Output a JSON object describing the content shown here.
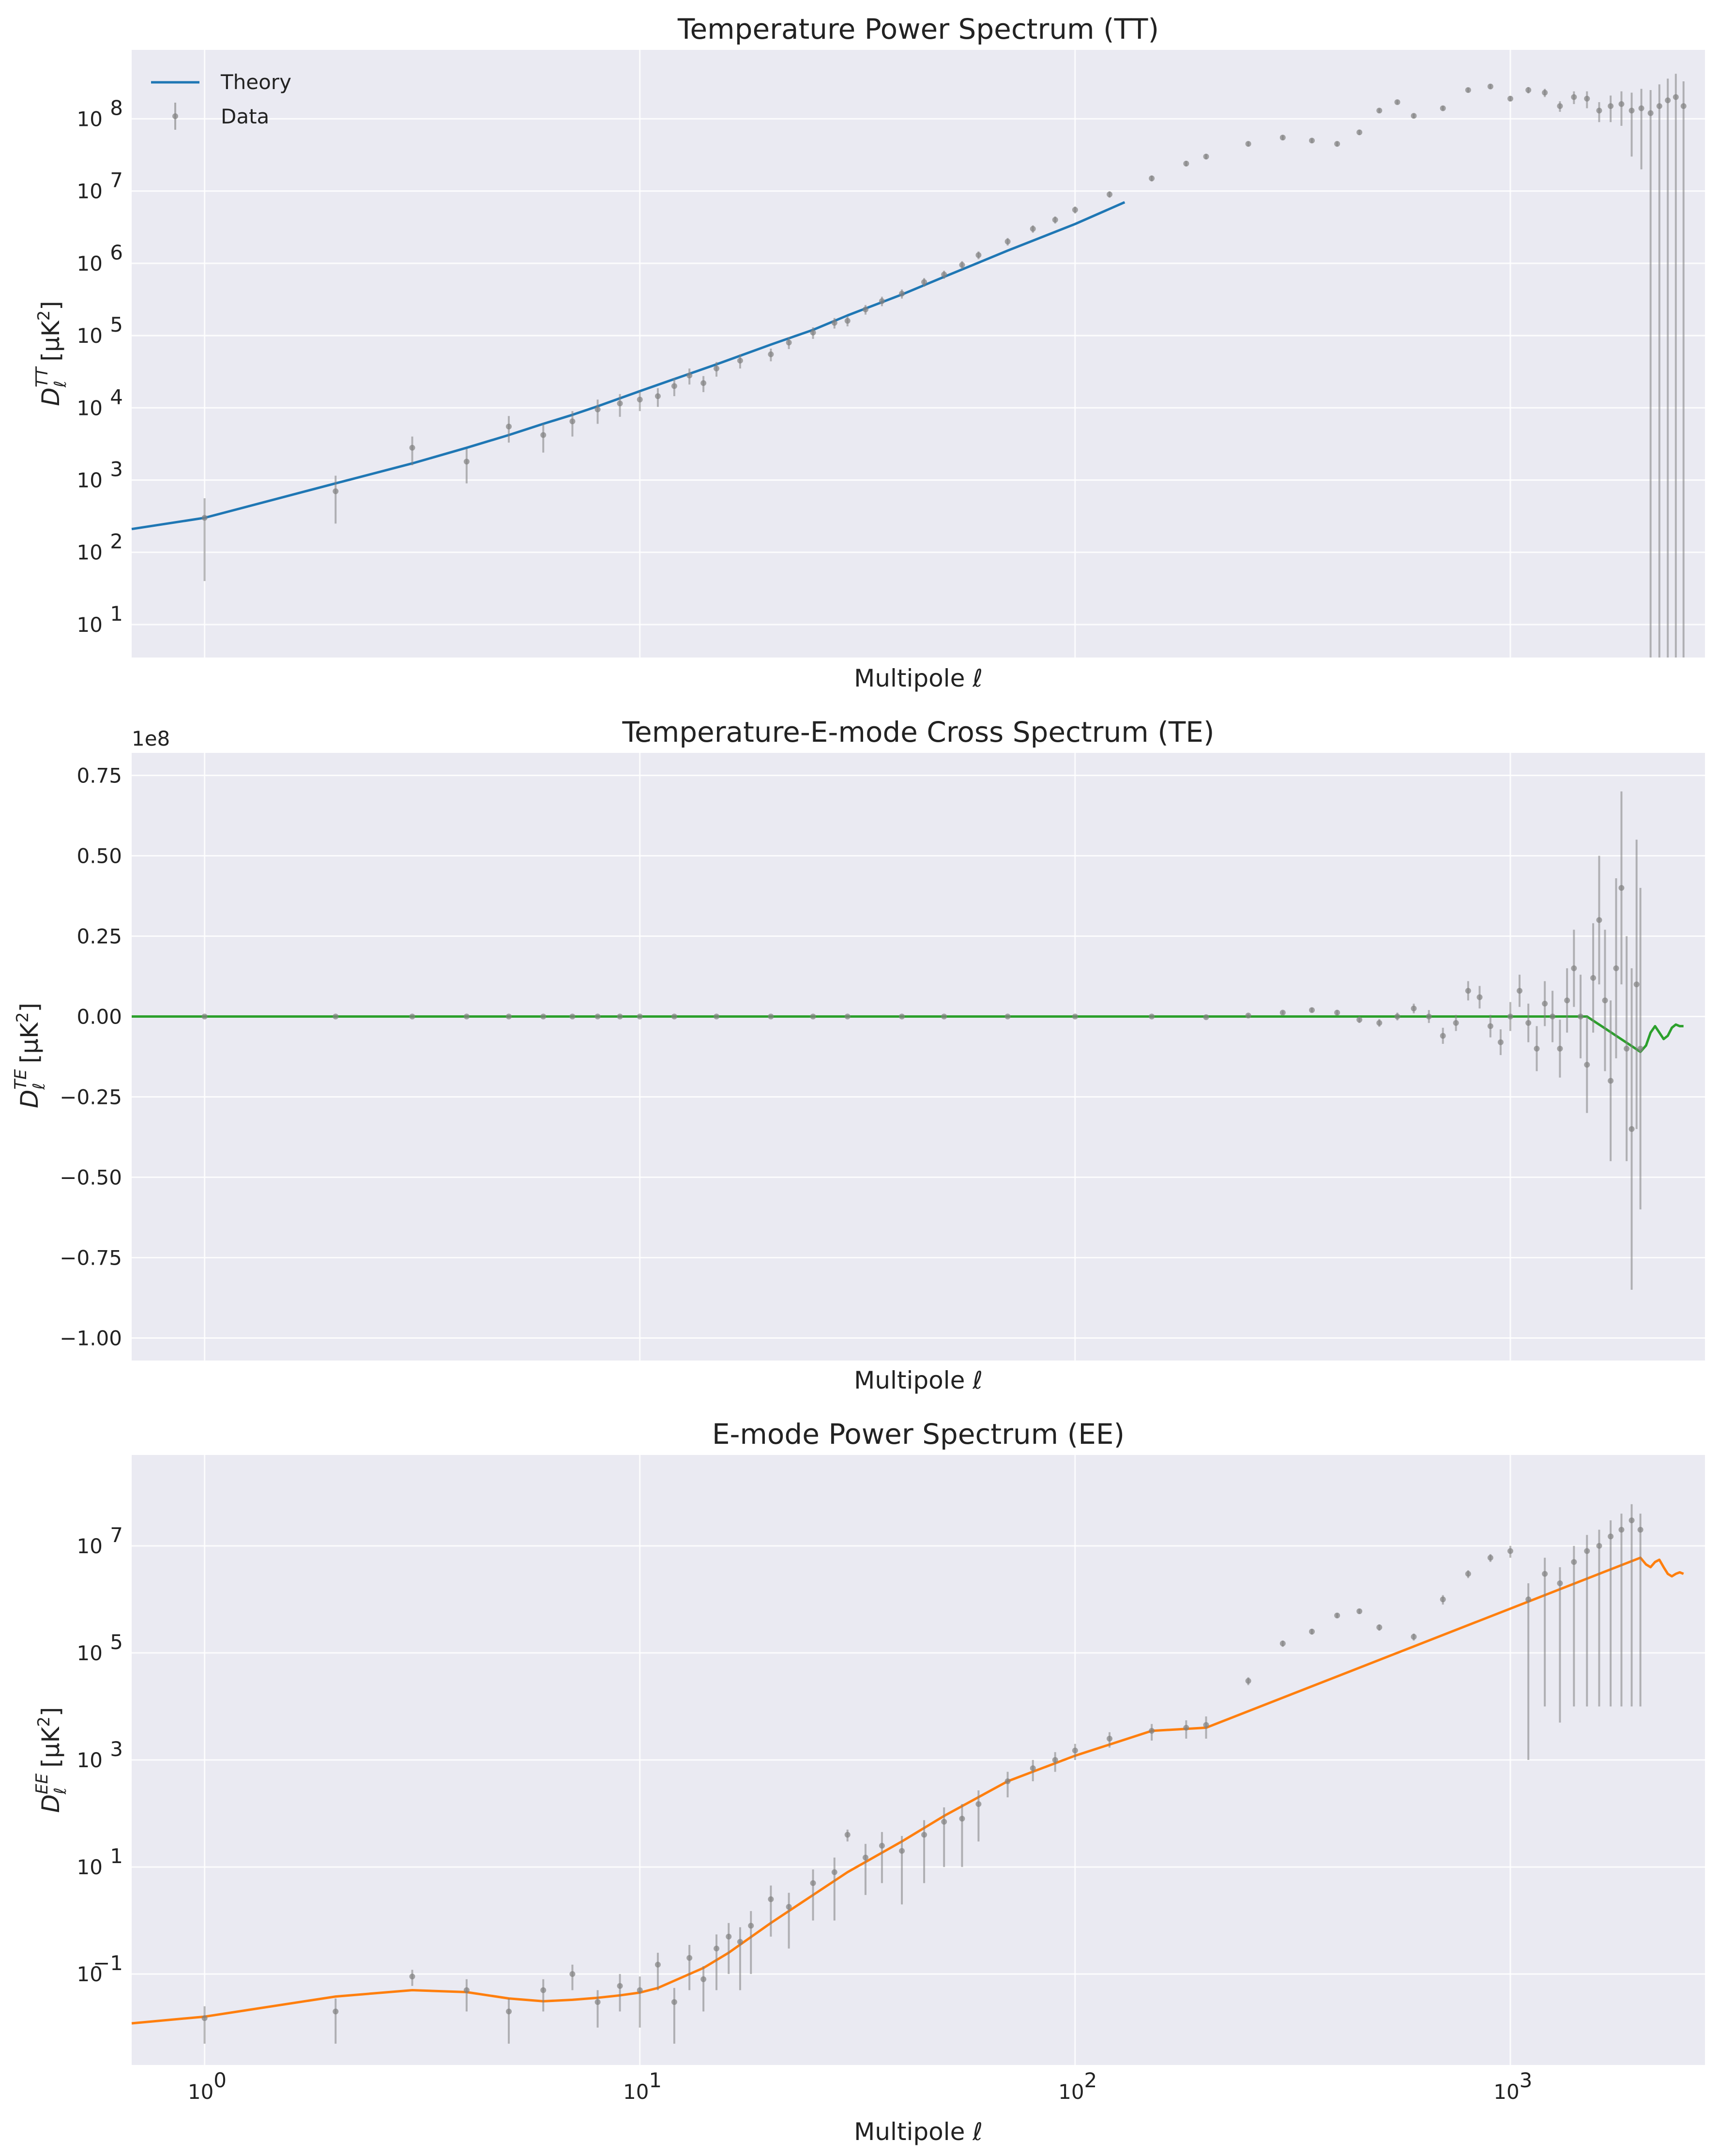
{
  "colors": {
    "background": "#eaeaf2",
    "grid": "#ffffff",
    "theory_tt": "#1f77b4",
    "theory_te": "#2ca02c",
    "theory_ee": "#ff7f0e",
    "data": "#808080"
  },
  "legend": {
    "theory": "Theory",
    "data": "Data",
    "placement": "upper-left"
  },
  "chart_data": [
    {
      "type": "line",
      "title": "Temperature Power Spectrum (TT)",
      "xlabel": "Multipole ℓ",
      "ylabel": "D_ℓ^TT [μK²]",
      "ylabel_main": "D",
      "ylabel_sub": "ℓ",
      "ylabel_sup": "TT",
      "ylabel_unit": "[μK",
      "ylabel_unit_sup": "2",
      "ylabel_unit_close": "]",
      "xscale": "log",
      "yscale": "log",
      "xlim": [
        0.68,
        2800
      ],
      "ylim": [
        3.5,
        900000000
      ],
      "grid": true,
      "yticks": [
        {
          "base": "10",
          "exp": "1"
        },
        {
          "base": "10",
          "exp": "2"
        },
        {
          "base": "10",
          "exp": "3"
        },
        {
          "base": "10",
          "exp": "4"
        },
        {
          "base": "10",
          "exp": "5"
        },
        {
          "base": "10",
          "exp": "6"
        },
        {
          "base": "10",
          "exp": "7"
        },
        {
          "base": "10",
          "exp": "8"
        }
      ],
      "series": [
        {
          "name": "Theory",
          "kind": "line",
          "x": [
            0.68,
            1,
            2,
            3,
            4,
            5,
            6,
            7,
            8,
            10,
            12,
            15,
            20,
            25,
            30,
            40,
            50,
            70,
            100,
            130
          ],
          "y": [
            210,
            300,
            900,
            1700,
            2800,
            4200,
            6000,
            8000,
            10500,
            17000,
            25000,
            40000,
            75000,
            120000,
            190000,
            370000,
            650000,
            1500000,
            3500000,
            7000000
          ]
        },
        {
          "name": "Data",
          "kind": "errorbar",
          "x": [
            1,
            2,
            3,
            4,
            5,
            6,
            7,
            8,
            9,
            10,
            11,
            12,
            13,
            14,
            15,
            17,
            20,
            22,
            25,
            28,
            30,
            33,
            36,
            40,
            45,
            50,
            55,
            60,
            70,
            80,
            90,
            100,
            120,
            150,
            180,
            200,
            250,
            300,
            350,
            400,
            450,
            500,
            550,
            600,
            700,
            800,
            900,
            1000,
            1100,
            1200,
            1300,
            1400,
            1500,
            1600,
            1700,
            1800,
            1900,
            2000,
            2100,
            2200,
            2300,
            2400,
            2500
          ],
          "y": [
            300,
            700,
            2800,
            1800,
            5500,
            4200,
            6500,
            9500,
            11500,
            13000,
            14500,
            20000,
            28000,
            22000,
            35000,
            45000,
            55000,
            80000,
            110000,
            150000,
            160000,
            230000,
            300000,
            380000,
            550000,
            700000,
            950000,
            1300000,
            2000000,
            3000000,
            4000000,
            5500000,
            9000000,
            15000000,
            24000000,
            30000000,
            45000000,
            55000000,
            50000000,
            45000000,
            65000000,
            130000000,
            170000000,
            110000000,
            140000000,
            250000000,
            280000000,
            190000000,
            250000000,
            230000000,
            150000000,
            200000000,
            190000000,
            130000000,
            150000000,
            160000000,
            130000000,
            140000000,
            120000000,
            150000000,
            180000000,
            200000000,
            150000000
          ],
          "err": [
            260,
            450,
            1200,
            900,
            2200,
            1800,
            2500,
            3500,
            4000,
            4000,
            4200,
            5500,
            7000,
            5500,
            8000,
            10000,
            11000,
            15000,
            20000,
            25000,
            26000,
            35000,
            45000,
            55000,
            75000,
            90000,
            120000,
            160000,
            240000,
            350000,
            450000,
            600000,
            900000,
            1400000,
            2000000,
            2500000,
            3500000,
            4000000,
            3500000,
            3500000,
            5000000,
            9000000,
            11000000,
            8000000,
            10000000,
            18000000,
            20000000,
            15000000,
            25000000,
            30000000,
            25000000,
            40000000,
            50000000,
            40000000,
            60000000,
            80000000,
            100000000,
            120000000,
            130000000,
            150000000,
            180000000,
            220000000,
            180000000
          ]
        }
      ]
    },
    {
      "type": "line",
      "title": "Temperature-E-mode Cross Spectrum (TE)",
      "xlabel": "Multipole ℓ",
      "ylabel": "D_ℓ^TE [μK²]",
      "ylabel_main": "D",
      "ylabel_sub": "ℓ",
      "ylabel_sup": "TE",
      "ylabel_unit": "[μK",
      "ylabel_unit_sup": "2",
      "ylabel_unit_close": "]",
      "xscale": "log",
      "yscale": "linear",
      "xlim": [
        0.68,
        2800
      ],
      "ylim": [
        -1.07,
        0.82
      ],
      "offset_text": "1e8",
      "grid": true,
      "yticks": [
        {
          "value": 0.75,
          "label": "0.75"
        },
        {
          "value": 0.5,
          "label": "0.50"
        },
        {
          "value": 0.25,
          "label": "0.25"
        },
        {
          "value": 0.0,
          "label": "0.00"
        },
        {
          "value": -0.25,
          "label": "−0.25"
        },
        {
          "value": -0.5,
          "label": "−0.50"
        },
        {
          "value": -0.75,
          "label": "−0.75"
        },
        {
          "value": -1.0,
          "label": "−1.00"
        }
      ],
      "series": [
        {
          "name": "Theory",
          "kind": "line",
          "x": [
            0.68,
            1,
            10,
            100,
            1000,
            1500,
            1990,
            2050,
            2100,
            2150,
            2200,
            2250,
            2300,
            2350,
            2400,
            2450,
            2500
          ],
          "y": [
            0,
            0,
            0,
            0,
            0,
            0,
            -0.11,
            -0.09,
            -0.05,
            -0.03,
            -0.05,
            -0.07,
            -0.06,
            -0.035,
            -0.025,
            -0.03,
            -0.03
          ]
        },
        {
          "name": "Data",
          "kind": "errorbar",
          "x": [
            1,
            2,
            3,
            4,
            5,
            6,
            7,
            8,
            9,
            10,
            12,
            15,
            20,
            25,
            30,
            40,
            50,
            70,
            100,
            150,
            200,
            250,
            300,
            350,
            400,
            450,
            500,
            550,
            600,
            650,
            700,
            750,
            800,
            850,
            900,
            950,
            1000,
            1050,
            1100,
            1150,
            1200,
            1250,
            1300,
            1350,
            1400,
            1450,
            1500,
            1550,
            1600,
            1650,
            1700,
            1750,
            1800,
            1850,
            1900,
            1950,
            1990
          ],
          "y": [
            0,
            0,
            0,
            0,
            0,
            0,
            0,
            0,
            0,
            0,
            0,
            0,
            0,
            0,
            0,
            0,
            0,
            0,
            0,
            0,
            -0.002,
            0.003,
            0.012,
            0.02,
            0.012,
            -0.01,
            -0.02,
            0.0,
            0.025,
            0.0,
            -0.06,
            -0.02,
            0.08,
            0.06,
            -0.03,
            -0.08,
            0.0,
            0.08,
            -0.02,
            -0.1,
            0.04,
            0.0,
            -0.1,
            0.05,
            0.15,
            0.0,
            -0.15,
            0.12,
            0.3,
            0.05,
            -0.2,
            0.15,
            0.4,
            -0.1,
            -0.35,
            0.1,
            -0.1
          ],
          "err": [
            0.0005,
            0.0005,
            0.0005,
            0.0005,
            0.0005,
            0.0005,
            0.0005,
            0.0005,
            0.0005,
            0.0005,
            0.0005,
            0.0005,
            0.0005,
            0.0005,
            0.0005,
            0.0005,
            0.0005,
            0.001,
            0.001,
            0.002,
            0.004,
            0.005,
            0.006,
            0.007,
            0.008,
            0.01,
            0.012,
            0.012,
            0.015,
            0.02,
            0.025,
            0.025,
            0.03,
            0.035,
            0.035,
            0.04,
            0.045,
            0.05,
            0.06,
            0.07,
            0.07,
            0.08,
            0.09,
            0.1,
            0.12,
            0.13,
            0.15,
            0.17,
            0.2,
            0.22,
            0.25,
            0.28,
            0.3,
            0.35,
            0.5,
            0.45,
            0.5
          ]
        }
      ]
    },
    {
      "type": "line",
      "title": "E-mode Power Spectrum (EE)",
      "xlabel": "Multipole ℓ",
      "ylabel": "D_ℓ^EE [μK²]",
      "ylabel_main": "D",
      "ylabel_sub": "ℓ",
      "ylabel_sup": "EE",
      "ylabel_unit": "[μK",
      "ylabel_unit_sup": "2",
      "ylabel_unit_close": "]",
      "xscale": "log",
      "yscale": "log",
      "xlim": [
        0.68,
        2800
      ],
      "ylim": [
        0.002,
        500000000
      ],
      "grid": true,
      "xticks": [
        {
          "value": 1,
          "base": "10",
          "exp": "0"
        },
        {
          "value": 10,
          "base": "10",
          "exp": "1"
        },
        {
          "value": 100,
          "base": "10",
          "exp": "2"
        },
        {
          "value": 1000,
          "base": "10",
          "exp": "3"
        }
      ],
      "yticks": [
        {
          "base": "10",
          "exp": "−1",
          "value": 0.1
        },
        {
          "base": "10",
          "exp": "1",
          "value": 10
        },
        {
          "base": "10",
          "exp": "3",
          "value": 1000
        },
        {
          "base": "10",
          "exp": "5",
          "value": 100000
        },
        {
          "base": "10",
          "exp": "7",
          "value": 10000000
        }
      ],
      "series": [
        {
          "name": "Theory",
          "kind": "line",
          "x": [
            0.68,
            1,
            2,
            3,
            4,
            5,
            6,
            7,
            8,
            9,
            10,
            11,
            12,
            14,
            16,
            20,
            25,
            30,
            40,
            50,
            70,
            100,
            150,
            200,
            1990,
            2050,
            2100,
            2150,
            2200,
            2250,
            2300,
            2350,
            2400,
            2450,
            2500
          ],
          "y": [
            0.012,
            0.016,
            0.038,
            0.05,
            0.046,
            0.035,
            0.031,
            0.033,
            0.036,
            0.04,
            0.045,
            0.055,
            0.075,
            0.13,
            0.25,
            0.9,
            3,
            8,
            30,
            90,
            400,
            1200,
            3500,
            4000,
            6000000,
            4500000,
            4000000,
            5000000,
            5500000,
            4000000,
            3000000,
            2700000,
            3000000,
            3200000,
            3000000
          ]
        },
        {
          "name": "Data",
          "kind": "errorbar",
          "x": [
            1,
            2,
            3,
            4,
            5,
            6,
            7,
            8,
            9,
            10,
            11,
            12,
            13,
            14,
            15,
            16,
            17,
            18,
            20,
            22,
            25,
            28,
            30,
            33,
            36,
            40,
            45,
            50,
            55,
            60,
            70,
            80,
            90,
            100,
            120,
            150,
            180,
            200,
            250,
            300,
            350,
            400,
            450,
            500,
            600,
            700,
            800,
            900,
            1000,
            1100,
            1200,
            1300,
            1400,
            1500,
            1600,
            1700,
            1800,
            1900,
            1990
          ],
          "y": [
            0.015,
            0.02,
            0.09,
            0.05,
            0.02,
            0.05,
            0.1,
            0.03,
            0.06,
            0.05,
            0.15,
            0.03,
            0.2,
            0.08,
            0.3,
            0.5,
            0.4,
            0.8,
            2.5,
            1.8,
            5,
            8,
            40,
            15,
            25,
            20,
            40,
            70,
            80,
            150,
            400,
            700,
            1000,
            1500,
            2500,
            3500,
            4000,
            4500,
            30000,
            150000,
            250000,
            500000,
            600000,
            300000,
            200000,
            1000000,
            3000000,
            6000000,
            8000000,
            1000000,
            3000000,
            2000000,
            5000000,
            8000000,
            10000000,
            15000000,
            20000000,
            30000000,
            20000000
          ],
          "err": [
            0.01,
            0.015,
            0.03,
            0.03,
            0.015,
            0.03,
            0.05,
            0.02,
            0.04,
            0.04,
            0.1,
            0.025,
            0.15,
            0.06,
            0.25,
            0.4,
            0.35,
            0.7,
            2,
            1.5,
            4,
            7,
            10,
            12,
            20,
            18,
            35,
            60,
            70,
            120,
            200,
            300,
            400,
            500,
            800,
            1200,
            1500,
            2000,
            5000,
            20000,
            30000,
            50000,
            60000,
            40000,
            30000,
            200000,
            500000,
            1000000,
            2000000,
            999000,
            2990000,
            1995000,
            4990000,
            7990000,
            9990000,
            14990000,
            19990000,
            29990000,
            19990000
          ]
        }
      ]
    }
  ]
}
